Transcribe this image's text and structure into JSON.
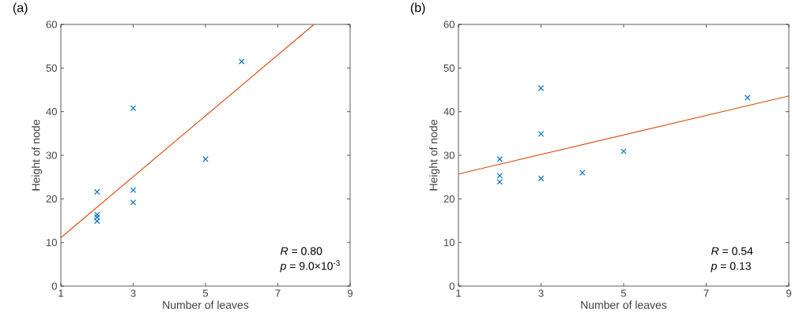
{
  "chart_data": [
    {
      "type": "scatter",
      "title": "(a)",
      "xlabel": "Number of leaves",
      "ylabel": "Height of node",
      "xlim": [
        1,
        9
      ],
      "xticks": [
        1,
        3,
        5,
        7,
        9
      ],
      "ylim": [
        0,
        60
      ],
      "yticks": [
        0,
        10,
        20,
        30,
        40,
        50,
        60
      ],
      "grid": false,
      "series": [
        {
          "type": "scatter",
          "color": "#0072bd",
          "marker": "cross",
          "x": [
            2,
            2,
            2,
            2,
            3,
            3,
            3,
            5,
            6
          ],
          "values": [
            21.6,
            16.4,
            15.8,
            14.9,
            40.8,
            22.0,
            19.2,
            29.1,
            51.5
          ]
        },
        {
          "type": "line",
          "color": "#d95319",
          "marker": "none",
          "x": [
            1,
            8
          ],
          "values": [
            11.1,
            60
          ]
        }
      ],
      "annotations": [
        "*R* = 0.80",
        "*p* = 9.0×10$^{-3}$"
      ]
    },
    {
      "type": "scatter",
      "title": "(b)",
      "xlabel": "Number of leaves",
      "ylabel": "Height of node",
      "xlim": [
        1,
        9
      ],
      "xticks": [
        1,
        3,
        5,
        7,
        9
      ],
      "ylim": [
        0,
        60
      ],
      "yticks": [
        0,
        10,
        20,
        30,
        40,
        50,
        60
      ],
      "grid": false,
      "series": [
        {
          "type": "scatter",
          "color": "#0072bd",
          "marker": "cross",
          "x": [
            2,
            2,
            2,
            3,
            3,
            3,
            4,
            5,
            8
          ],
          "values": [
            29.1,
            25.3,
            23.9,
            45.4,
            34.9,
            24.7,
            26.0,
            30.9,
            43.2
          ]
        },
        {
          "type": "line",
          "color": "#d95319",
          "marker": "none",
          "x": [
            1,
            9
          ],
          "values": [
            25.7,
            43.6
          ]
        }
      ],
      "annotations": [
        "*R* = 0.54",
        "*p* = 0.13"
      ]
    }
  ]
}
